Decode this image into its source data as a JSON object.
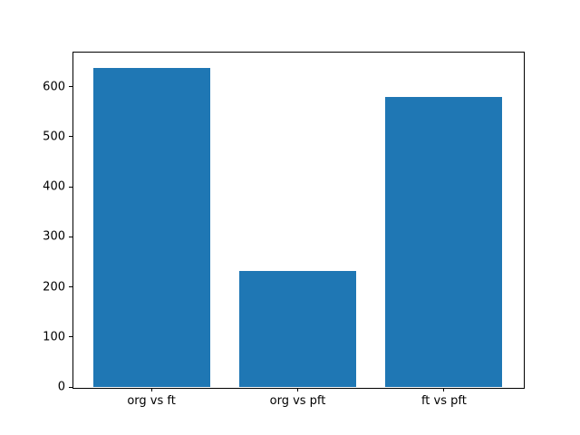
{
  "chart_data": {
    "type": "bar",
    "title": "",
    "xlabel": "",
    "ylabel": "",
    "categories": [
      "org vs ft",
      "org vs pft",
      "ft vs pft"
    ],
    "values": [
      638,
      232,
      580
    ],
    "yticks": [
      0,
      100,
      200,
      300,
      400,
      500,
      600
    ],
    "ylim": [
      0,
      670
    ],
    "bar_color": "#1f77b4",
    "background_color": "#ffffff",
    "spine_color": "#000000",
    "grid": false,
    "legend": null,
    "bar_width_fraction": 0.8
  }
}
